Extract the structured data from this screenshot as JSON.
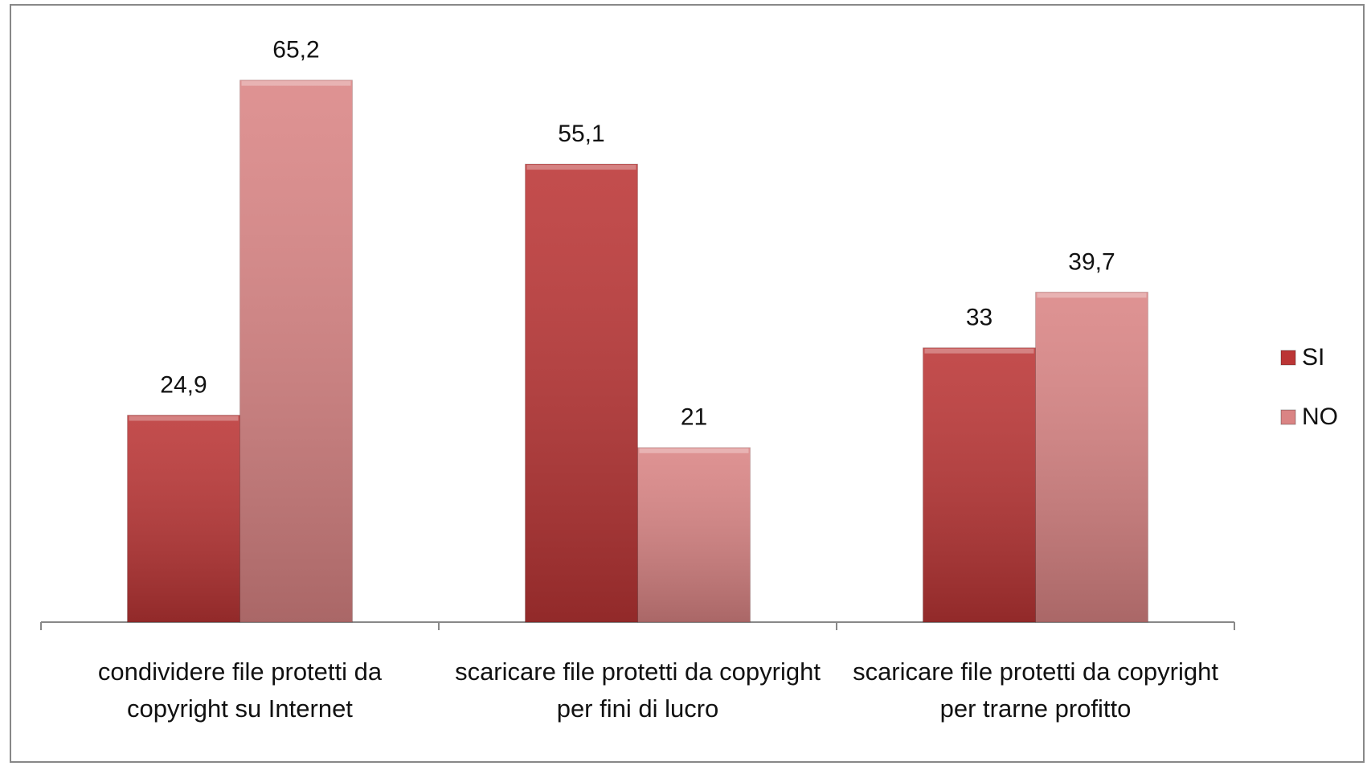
{
  "chart_data": {
    "type": "bar",
    "categories": [
      "condividere file protetti da\ncopyright su Internet",
      "scaricare file protetti da copyright\nper fini di lucro",
      "scaricare file protetti da copyright\nper trarne profitto"
    ],
    "series": [
      {
        "name": "SI",
        "color": "#bb3535",
        "values": [
          24.9,
          55.1,
          33
        ],
        "value_labels": [
          "24,9",
          "55,1",
          "33"
        ]
      },
      {
        "name": "NO",
        "color": "#da8484",
        "values": [
          65.2,
          21,
          39.7
        ],
        "value_labels": [
          "65,2",
          "21",
          "39,7"
        ]
      }
    ],
    "ylim": [
      0,
      70
    ],
    "legend": "right"
  }
}
